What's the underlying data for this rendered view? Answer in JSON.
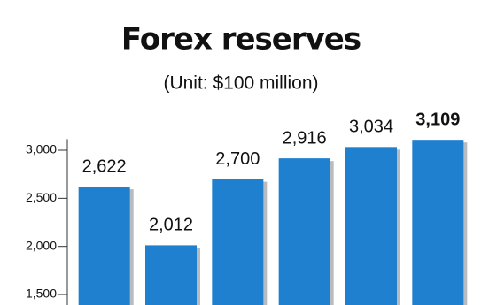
{
  "chart_data": {
    "type": "bar",
    "title": "Forex reserves",
    "subtitle": "(Unit: $100 million)",
    "values": [
      2622,
      2012,
      2700,
      2916,
      3034,
      3109
    ],
    "value_labels": [
      "2,622",
      "2,012",
      "2,700",
      "2,916",
      "3,034",
      "3,109"
    ],
    "color": "#1f80cf",
    "ylim": [
      1390,
      3300
    ],
    "yticks": [
      {
        "value": 1500,
        "label": "1,500"
      },
      {
        "value": 2000,
        "label": "2,000"
      },
      {
        "value": 2500,
        "label": "2,500"
      },
      {
        "value": 3000,
        "label": "3,000"
      }
    ]
  }
}
